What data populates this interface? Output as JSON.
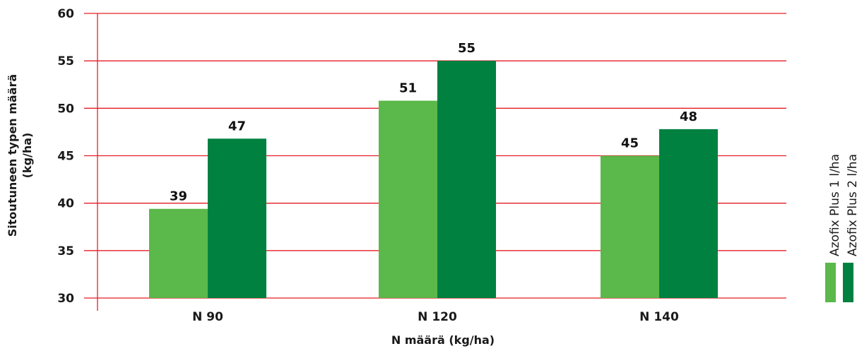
{
  "chart_data": {
    "type": "bar",
    "categories": [
      "N 90",
      "N 120",
      "N 140"
    ],
    "series": [
      {
        "name": "Azofix Plus 1 l/ha",
        "values": [
          39,
          51,
          45
        ],
        "color": "#5bb84a"
      },
      {
        "name": "Azofix Plus 2 l/ha",
        "values": [
          47,
          55,
          48
        ],
        "color": "#008140"
      }
    ],
    "plotted_values": [
      [
        39.4,
        50.8,
        45.0
      ],
      [
        46.8,
        55.0,
        47.8
      ]
    ],
    "ylim": [
      30,
      60
    ],
    "yticks": [
      30,
      35,
      40,
      45,
      50,
      55,
      60
    ],
    "ylabel_lines": [
      "Sitoutuneen typen määrä",
      "(kg/ha)"
    ],
    "xlabel": "N määrä (kg/ha)",
    "grid": true,
    "grid_color": "#e41e26",
    "legend_position": "right"
  }
}
